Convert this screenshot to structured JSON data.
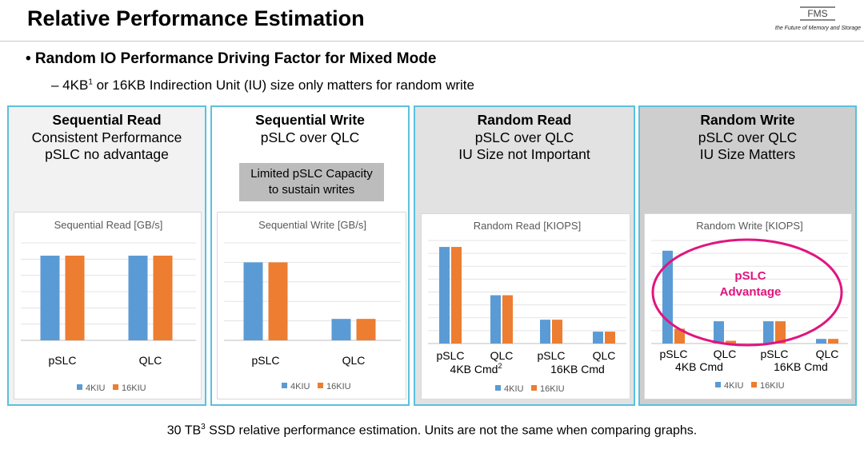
{
  "header": {
    "title": "Relative Performance Estimation",
    "logo_text": "FMS",
    "logo_tagline": "the Future of Memory and Storage"
  },
  "bullet": "• Random IO Performance Driving Factor for Mixed Mode",
  "subpoint": {
    "prefix": "– 4KB",
    "sup": "1",
    "rest": " or 16KB Indirection Unit (IU) size only matters for random write"
  },
  "panels": [
    {
      "lines": [
        "Sequential Read",
        "Consistent Performance",
        "pSLC no advantage"
      ],
      "bg": "#f2f2f2"
    },
    {
      "lines": [
        "Sequential Write",
        "pSLC over QLC"
      ],
      "bg": "#ffffff",
      "note": [
        "Limited pSLC Capacity",
        "to sustain writes"
      ]
    },
    {
      "lines": [
        "Random Read",
        "pSLC over QLC",
        "IU Size not Important"
      ],
      "bg": "#e2e2e2"
    },
    {
      "lines": [
        "Random Write",
        "pSLC over QLC",
        "IU Size Matters"
      ],
      "bg": "#cecece"
    }
  ],
  "colors": {
    "series_4kiu": "#5b9bd5",
    "series_16kiu": "#ed7d31",
    "annotation": "#e0157f",
    "panel_border": "#5bc0de"
  },
  "chart_data": [
    {
      "type": "bar",
      "title": "Sequential Read [GB/s]",
      "categories": [
        "pSLC",
        "QLC"
      ],
      "series": [
        {
          "name": "4KIU",
          "values": [
            5.3,
            5.3
          ]
        },
        {
          "name": "16KIU",
          "values": [
            5.3,
            5.3
          ]
        }
      ],
      "ylim": [
        0,
        6.1
      ],
      "grid": true,
      "legend": "bottom"
    },
    {
      "type": "bar",
      "title": "Sequential Write [GB/s]",
      "categories": [
        "pSLC",
        "QLC"
      ],
      "series": [
        {
          "name": "4KIU",
          "values": [
            4.0,
            1.1
          ]
        },
        {
          "name": "16KIU",
          "values": [
            4.0,
            1.1
          ]
        }
      ],
      "ylim": [
        0,
        5
      ],
      "grid": true,
      "legend": "bottom"
    },
    {
      "type": "bar",
      "title": "Random Read [KIOPS]",
      "categories": [
        "pSLC",
        "QLC",
        "pSLC",
        "QLC"
      ],
      "group_labels": [
        "4KB Cmd",
        "16KB Cmd"
      ],
      "group_label_sup": [
        "2",
        ""
      ],
      "series": [
        {
          "name": "4KIU",
          "values": [
            3000,
            1500,
            740,
            370
          ]
        },
        {
          "name": "16KIU",
          "values": [
            3000,
            1500,
            740,
            370
          ]
        }
      ],
      "ylim": [
        0,
        3200
      ],
      "grid": true,
      "legend": "bottom"
    },
    {
      "type": "bar",
      "title": "Random Write [KIOPS]",
      "categories": [
        "pSLC",
        "QLC",
        "pSLC",
        "QLC"
      ],
      "group_labels": [
        "4KB Cmd",
        "16KB Cmd"
      ],
      "group_label_sup": [
        "",
        ""
      ],
      "series": [
        {
          "name": "4KIU",
          "values": [
            1000,
            240,
            240,
            50
          ]
        },
        {
          "name": "16KIU",
          "values": [
            160,
            30,
            240,
            50
          ]
        }
      ],
      "ylim": [
        0,
        1110
      ],
      "grid": true,
      "legend": "bottom",
      "annotation": {
        "lines": [
          "pSLC",
          "Advantage"
        ]
      }
    }
  ],
  "footer": {
    "prefix": "30 TB",
    "sup": "3",
    "rest": " SSD relative performance estimation.  Units are not the same when comparing graphs."
  }
}
